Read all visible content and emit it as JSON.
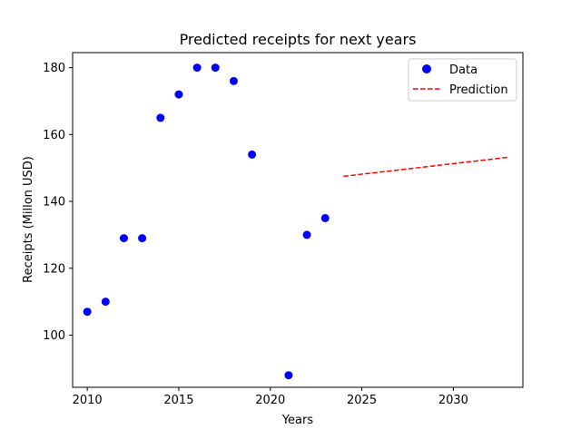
{
  "chart_data": {
    "type": "scatter",
    "title": "Predicted receipts for next years",
    "xlabel": "Years",
    "ylabel": "Receipts (Millon USD)",
    "xlim": [
      2009.2,
      2033.8
    ],
    "ylim": [
      84.4,
      184.5
    ],
    "xticks": [
      2010,
      2015,
      2020,
      2025,
      2030
    ],
    "yticks": [
      100,
      120,
      140,
      160,
      180
    ],
    "grid": false,
    "legend_position": "top-right",
    "series": [
      {
        "name": "Data",
        "kind": "scatter",
        "color": "#0000ff",
        "x": [
          2010,
          2011,
          2012,
          2013,
          2014,
          2015,
          2016,
          2017,
          2018,
          2019,
          2021,
          2022,
          2023
        ],
        "y": [
          107,
          110,
          129,
          129,
          165,
          172,
          180,
          180,
          176,
          154,
          88,
          130,
          135
        ]
      },
      {
        "name": "Prediction",
        "kind": "line",
        "style": "dashed",
        "color": "#ff0000",
        "x": [
          2024,
          2033
        ],
        "y": [
          147.5,
          153.2
        ]
      }
    ]
  }
}
